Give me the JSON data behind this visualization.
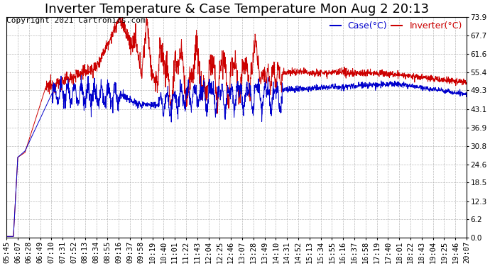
{
  "title": "Inverter Temperature & Case Temperature Mon Aug 2 20:13",
  "copyright": "Copyright 2021 Cartronics.com",
  "legend_case": "Case(°C)",
  "legend_inverter": "Inverter(°C)",
  "case_color": "#0000cc",
  "inverter_color": "#cc0000",
  "background_color": "#ffffff",
  "plot_bg_color": "#ffffff",
  "grid_color": "#aaaaaa",
  "ylim": [
    0.0,
    73.9
  ],
  "yticks": [
    0.0,
    6.2,
    12.3,
    18.5,
    24.6,
    30.8,
    36.9,
    43.1,
    49.3,
    55.4,
    61.6,
    67.7,
    73.9
  ],
  "title_fontsize": 13,
  "copyright_fontsize": 8,
  "legend_fontsize": 9,
  "tick_fontsize": 7.5,
  "xtick_labels": [
    "05:45",
    "06:07",
    "06:28",
    "06:49",
    "07:10",
    "07:31",
    "07:52",
    "08:13",
    "08:34",
    "08:55",
    "09:16",
    "09:37",
    "09:58",
    "10:19",
    "10:40",
    "11:01",
    "11:22",
    "11:43",
    "12:04",
    "12:25",
    "12:46",
    "13:07",
    "13:28",
    "13:49",
    "14:10",
    "14:31",
    "14:52",
    "15:13",
    "15:34",
    "15:55",
    "16:16",
    "16:37",
    "16:58",
    "17:19",
    "17:40",
    "18:01",
    "18:22",
    "18:43",
    "19:04",
    "19:25",
    "19:46",
    "20:07"
  ],
  "num_points": 2000
}
